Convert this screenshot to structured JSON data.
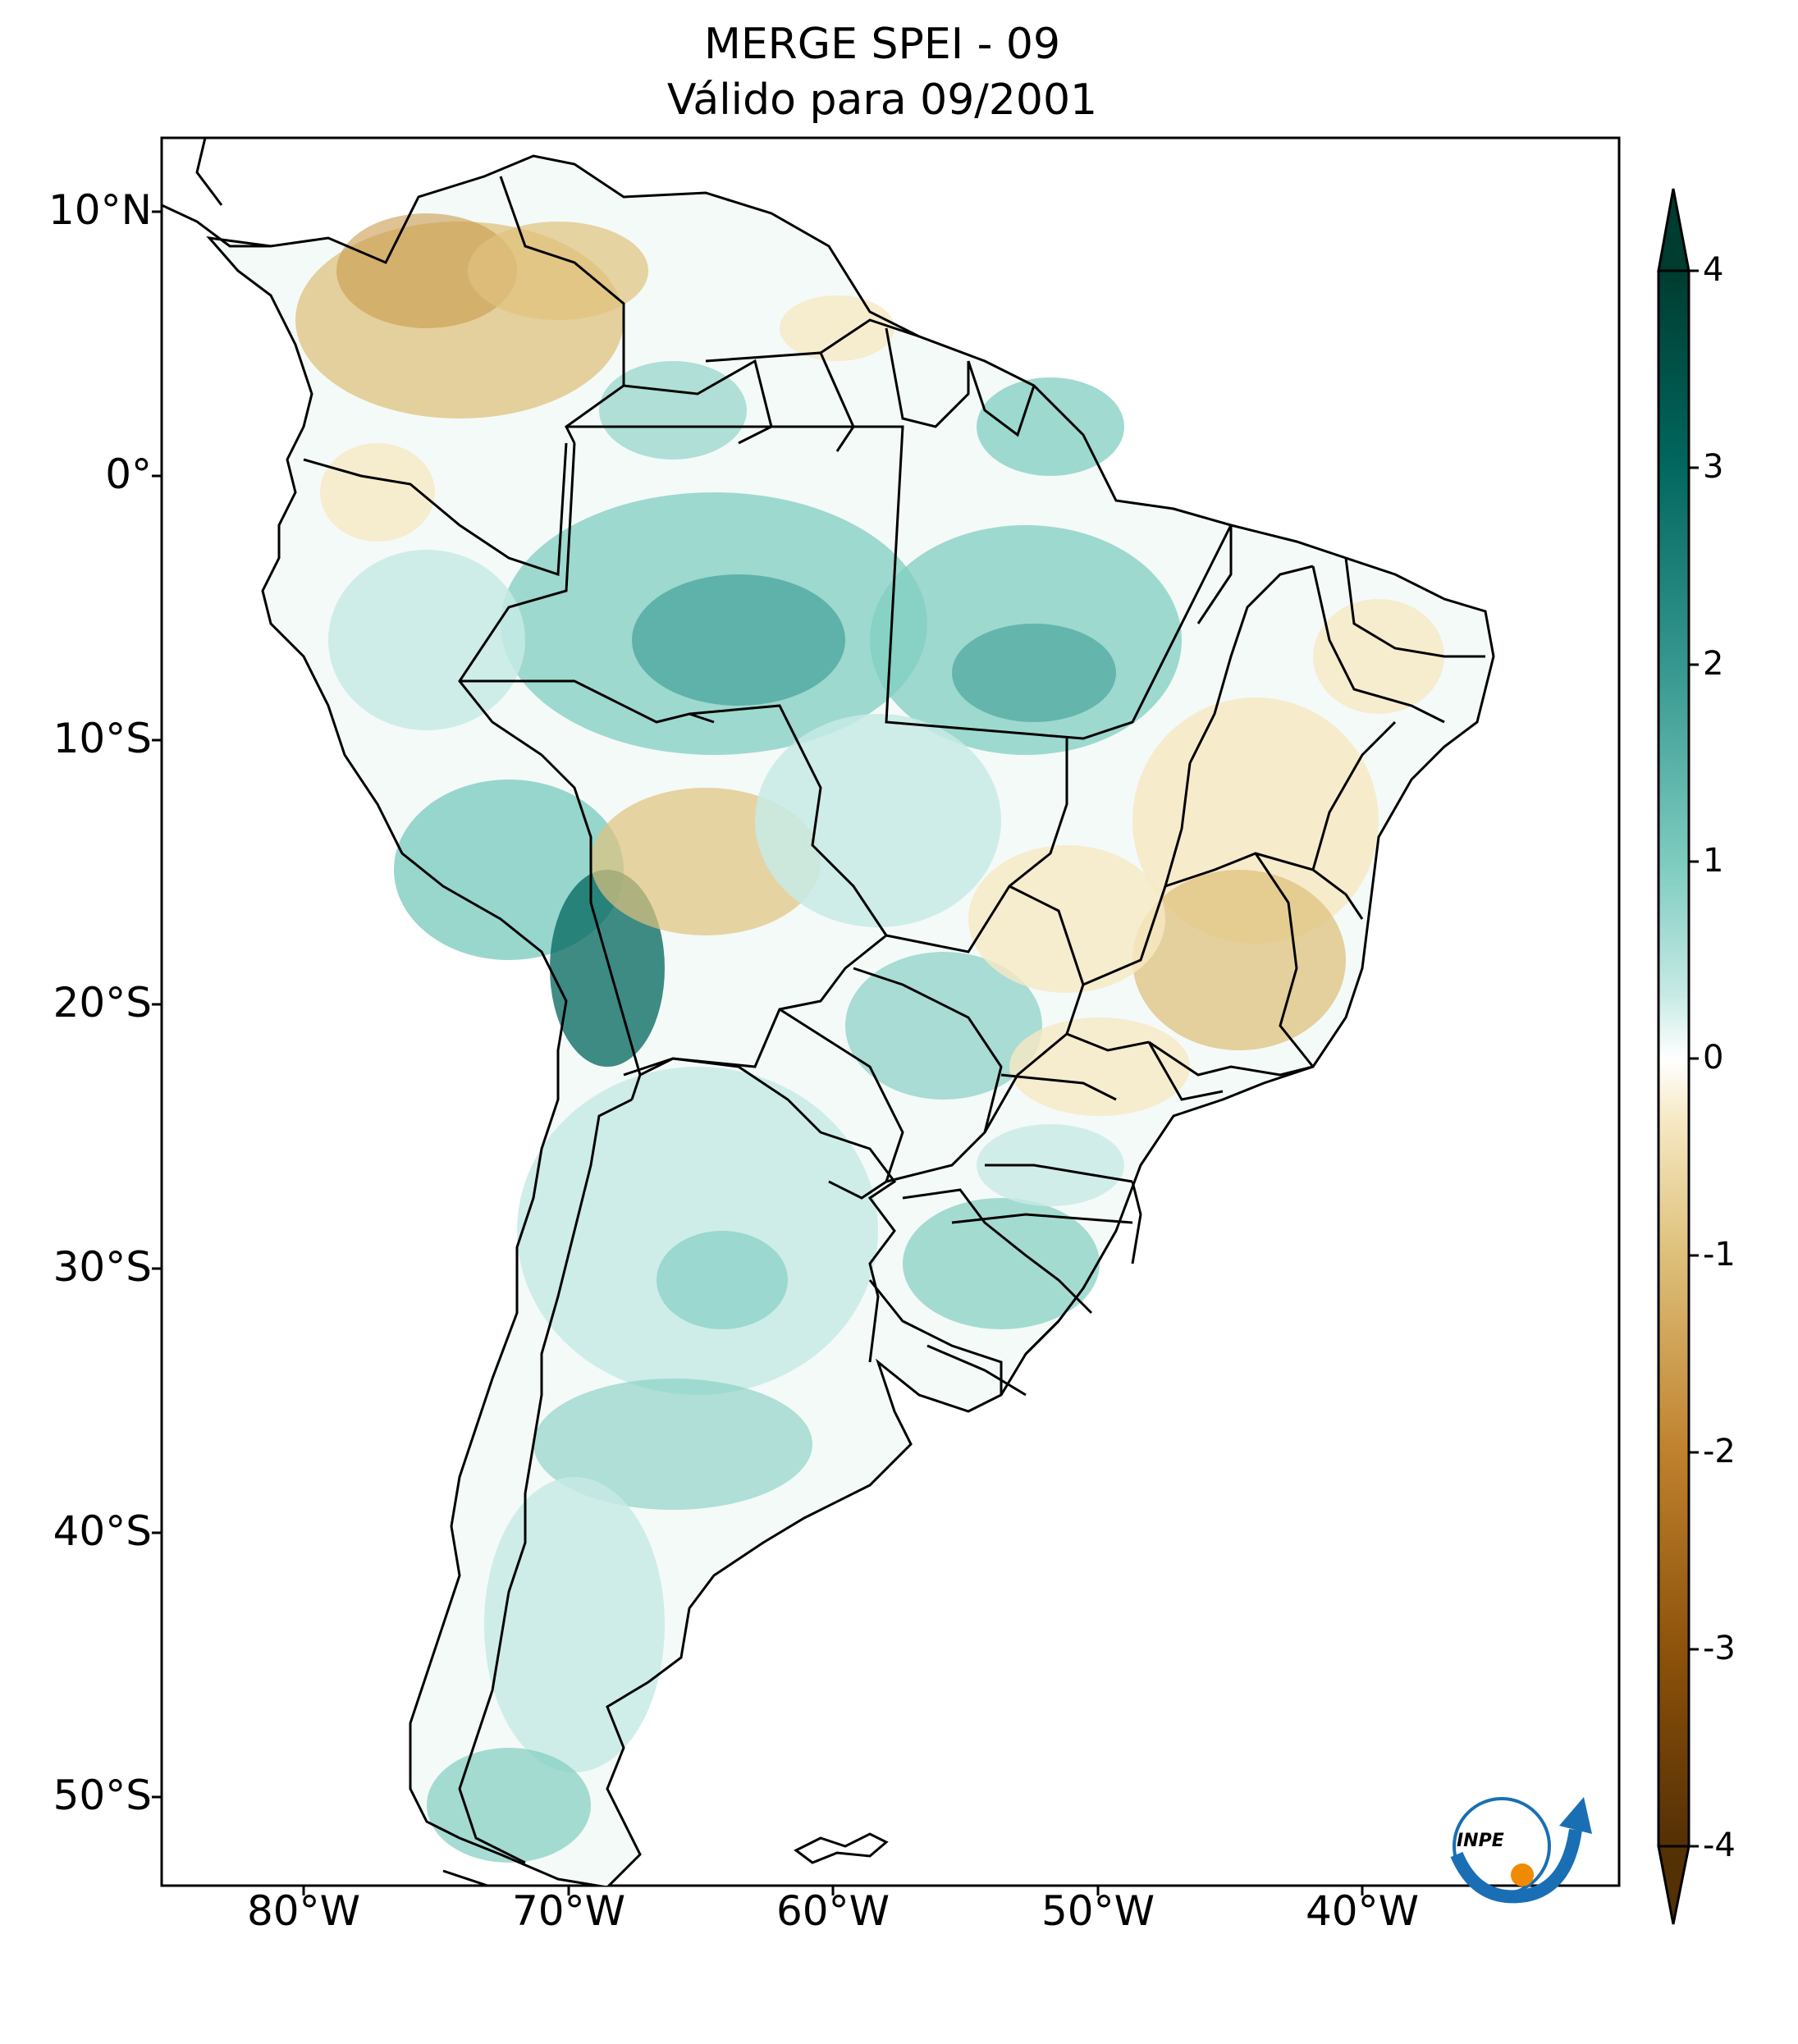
{
  "title": {
    "line1": "MERGE   SPEI - 09",
    "line2": "Válido para 09/2001"
  },
  "axes": {
    "latitude_labels": [
      "10°N",
      "0°",
      "10°S",
      "20°S",
      "30°S",
      "40°S",
      "50°S"
    ],
    "longitude_labels": [
      "80°W",
      "70°W",
      "60°W",
      "50°W",
      "40°W"
    ]
  },
  "colorbar": {
    "ticks": [
      "4",
      "3",
      "2",
      "1",
      "0",
      "-1",
      "-2",
      "-3",
      "-4"
    ],
    "colors": {
      "dry_extreme": "#543005",
      "dry": "#bf812d",
      "neutral": "#ffffff",
      "wet": "#35978f",
      "wet_extreme": "#003c30"
    }
  },
  "logo": {
    "text": "INPE"
  }
}
